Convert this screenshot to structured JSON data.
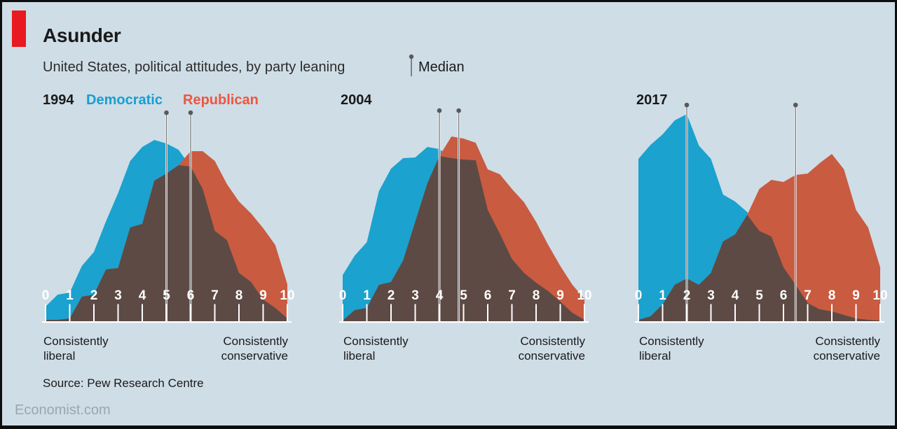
{
  "header": {
    "title": "Asunder",
    "subtitle": "United States, political attitudes, by party leaning",
    "median_label": "Median"
  },
  "legend": {
    "democratic": "Democratic",
    "republican": "Republican"
  },
  "axis_labels": {
    "left_line1": "Consistently",
    "left_line2": "liberal",
    "right_line1": "Consistently",
    "right_line2": "conservative"
  },
  "source": "Source: Pew Research Centre",
  "site": "Economist.com",
  "colors": {
    "background": "#cfdde6",
    "accent_red_tab": "#e8191f",
    "democratic_area": "#1ba2cf",
    "republican_area": "#c95b41",
    "overlap_area": "#5d4a44",
    "legend_democratic_text": "#189ed2",
    "legend_republican_text": "#ef5540",
    "median_pin": "#58595b",
    "median_line_core": "#77787b",
    "median_line_casing": "#ffffff",
    "axis_white": "#ffffff",
    "site_text": "#98a7b1"
  },
  "chart_data": [
    {
      "type": "area",
      "year": "1994",
      "x_min": 0,
      "x_max": 10,
      "x_step": 0.5,
      "x_tick_labels": [
        "0",
        "1",
        "2",
        "3",
        "4",
        "5",
        "6",
        "7",
        "8",
        "9",
        "10"
      ],
      "y_unit": "relative share of party members (unlabeled axis, pixel-relative units)",
      "ylim": [
        0,
        310
      ],
      "series": [
        {
          "name": "Democratic",
          "values": [
            22,
            39,
            42,
            80,
            100,
            144,
            184,
            230,
            250,
            260,
            255,
            246,
            222,
            190,
            130,
            117,
            70,
            57,
            32,
            20,
            5
          ]
        },
        {
          "name": "Republican",
          "values": [
            3,
            3,
            5,
            36,
            39,
            75,
            77,
            135,
            140,
            202,
            212,
            224,
            244,
            244,
            230,
            197,
            172,
            155,
            134,
            110,
            54
          ]
        }
      ],
      "medians": {
        "democratic": 5.0,
        "republican": 6.0
      },
      "left_axis_label": "Consistently liberal",
      "right_axis_label": "Consistently conservative"
    },
    {
      "type": "area",
      "year": "2004",
      "x_min": 0,
      "x_max": 10,
      "x_step": 0.5,
      "x_tick_labels": [
        "0",
        "1",
        "2",
        "3",
        "4",
        "5",
        "6",
        "7",
        "8",
        "9",
        "10"
      ],
      "y_unit": "relative share of party members (unlabeled axis, pixel-relative units)",
      "ylim": [
        0,
        310
      ],
      "series": [
        {
          "name": "Democratic",
          "values": [
            67,
            95,
            114,
            187,
            219,
            234,
            235,
            250,
            247,
            234,
            232,
            231,
            160,
            126,
            90,
            70,
            56,
            44,
            29,
            13,
            3
          ]
        },
        {
          "name": "Republican",
          "values": [
            2,
            17,
            20,
            53,
            57,
            88,
            143,
            198,
            237,
            265,
            262,
            256,
            218,
            211,
            190,
            171,
            143,
            110,
            80,
            53,
            33
          ]
        }
      ],
      "medians": {
        "democratic": 4.0,
        "republican": 4.8
      },
      "left_axis_label": "Consistently liberal",
      "right_axis_label": "Consistently conservative"
    },
    {
      "type": "area",
      "year": "2017",
      "x_min": 0,
      "x_max": 10,
      "x_step": 0.5,
      "x_tick_labels": [
        "0",
        "1",
        "2",
        "3",
        "4",
        "5",
        "6",
        "7",
        "8",
        "9",
        "10"
      ],
      "y_unit": "relative share of party members (unlabeled axis, pixel-relative units)",
      "ylim": [
        0,
        310
      ],
      "series": [
        {
          "name": "Democratic",
          "values": [
            233,
            253,
            268,
            288,
            297,
            252,
            233,
            182,
            172,
            157,
            130,
            122,
            78,
            53,
            27,
            18,
            15,
            10,
            5,
            3,
            2
          ]
        },
        {
          "name": "Republican",
          "values": [
            3,
            8,
            25,
            53,
            62,
            53,
            70,
            115,
            125,
            153,
            190,
            203,
            200,
            210,
            212,
            227,
            240,
            218,
            160,
            135,
            78
          ]
        }
      ],
      "medians": {
        "democratic": 2.0,
        "republican": 6.5
      },
      "left_axis_label": "Consistently liberal",
      "right_axis_label": "Consistently conservative"
    }
  ]
}
